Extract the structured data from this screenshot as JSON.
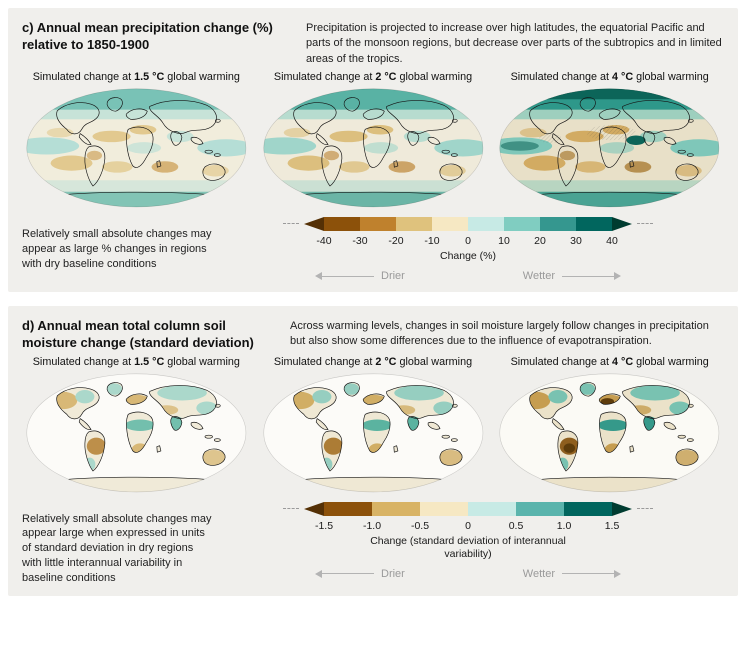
{
  "panel_c": {
    "title": "c) Annual mean precipitation change (%) relative to 1850-1900",
    "description": "Precipitation is projected to increase over high latitudes, the equatorial Pacific and parts of the monsoon regions, but decrease over parts of the subtropics and in limited areas of the tropics.",
    "maps": [
      {
        "pre": "Simulated change at ",
        "temp": "1.5 °C",
        "post": " global warming"
      },
      {
        "pre": "Simulated change at ",
        "temp": "2 °C",
        "post": " global warming"
      },
      {
        "pre": "Simulated change at ",
        "temp": "4 °C",
        "post": " global warming"
      }
    ],
    "note": "Relatively small absolute changes may appear as large % changes in regions with dry baseline conditions",
    "colorbar": {
      "ticks": [
        "-40",
        "-30",
        "-20",
        "-10",
        "0",
        "10",
        "20",
        "30",
        "40"
      ],
      "label": "Change (%)",
      "drier_label": "Drier",
      "wetter_label": "Wetter",
      "arrow_left_color": "#543005",
      "arrow_right_color": "#003c30",
      "segment_colors": [
        "#8c510a",
        "#bf812d",
        "#dfc27d",
        "#f6e8c3",
        "#c7eae5",
        "#80cdc1",
        "#35978f",
        "#01665e"
      ]
    }
  },
  "panel_d": {
    "title": "d) Annual mean total column soil moisture change (standard deviation)",
    "description": "Across warming levels, changes in soil moisture largely follow changes in precipitation but also show some differences due to the influence of evapotranspiration.",
    "maps": [
      {
        "pre": "Simulated change at ",
        "temp": "1.5 °C",
        "post": " global warming"
      },
      {
        "pre": "Simulated change at ",
        "temp": "2 °C",
        "post": " global warming"
      },
      {
        "pre": "Simulated change at ",
        "temp": "4 °C",
        "post": " global warming"
      }
    ],
    "note": "Relatively small absolute changes may appear large when expressed in units of standard deviation in dry regions with little interannual variability in baseline conditions",
    "colorbar": {
      "ticks": [
        "-1.5",
        "-1.0",
        "-0.5",
        "0",
        "0.5",
        "1.0",
        "1.5"
      ],
      "label": "Change (standard deviation of interannual variability)",
      "drier_label": "Drier",
      "wetter_label": "Wetter",
      "arrow_left_color": "#543005",
      "arrow_right_color": "#003c30",
      "segment_colors": [
        "#8c510a",
        "#d8b365",
        "#f6e8c3",
        "#c7eae5",
        "#5ab4ac",
        "#01665e"
      ]
    }
  },
  "chart_data": [
    {
      "type": "heatmap",
      "panel": "c",
      "title": "Annual mean precipitation change (%) relative to 1850-1900",
      "subplots": [
        "Simulated change at 1.5 °C global warming",
        "Simulated change at 2 °C global warming",
        "Simulated change at 4 °C global warming"
      ],
      "variable": "Annual mean precipitation change",
      "units": "%",
      "colorbar_label": "Change (%)",
      "colorbar_ticks": [
        -40,
        -30,
        -20,
        -10,
        0,
        10,
        20,
        30,
        40
      ],
      "colorbar_range": [
        -40,
        40
      ],
      "low_label": "Drier",
      "high_label": "Wetter",
      "palette": [
        "#543005",
        "#8c510a",
        "#bf812d",
        "#dfc27d",
        "#f6e8c3",
        "#c7eae5",
        "#80cdc1",
        "#35978f",
        "#01665e",
        "#003c30"
      ],
      "annotation": "Precipitation is projected to increase over high latitudes, the equatorial Pacific and parts of the monsoon regions, but decrease over parts of the subtropics and in limited areas of the tropics.",
      "note": "Relatively small absolute changes may appear as large % changes in regions with dry baseline conditions"
    },
    {
      "type": "heatmap",
      "panel": "d",
      "title": "Annual mean total column soil moisture change (standard deviation)",
      "subplots": [
        "Simulated change at 1.5 °C global warming",
        "Simulated change at 2 °C global warming",
        "Simulated change at 4 °C global warming"
      ],
      "variable": "Annual mean total column soil moisture change",
      "units": "standard deviation of interannual variability",
      "colorbar_label": "Change (standard deviation of interannual variability)",
      "colorbar_ticks": [
        -1.5,
        -1.0,
        -0.5,
        0,
        0.5,
        1.0,
        1.5
      ],
      "colorbar_range": [
        -1.5,
        1.5
      ],
      "low_label": "Drier",
      "high_label": "Wetter",
      "palette": [
        "#543005",
        "#8c510a",
        "#d8b365",
        "#f6e8c3",
        "#c7eae5",
        "#5ab4ac",
        "#01665e",
        "#003c30"
      ],
      "annotation": "Across warming levels, changes in soil moisture largely follow changes in precipitation but also show some differences due to the influence of evapotranspiration.",
      "note": "Relatively small absolute changes may appear large when expressed in units of standard deviation in dry regions with little interannual variability in baseline conditions"
    }
  ]
}
